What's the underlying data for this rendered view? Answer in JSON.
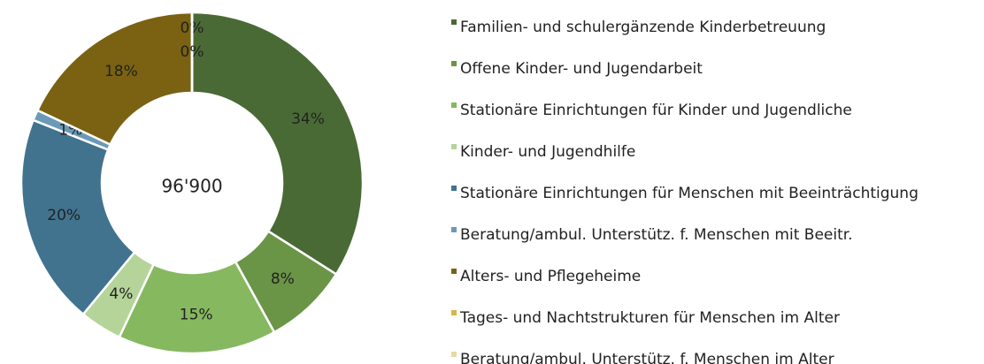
{
  "chart_data": {
    "type": "donut",
    "center_label": "96'900",
    "categories": [
      "Familien- und schulergänzende Kinderbetreuung",
      "Offene Kinder- und Jugendarbeit",
      "Stationäre Einrichtungen für Kinder und Jugendliche",
      "Kinder- und Jugendhilfe",
      "Stationäre Einrichtungen für Menschen mit Beeinträchtigung",
      "Beratung/ambul. Unterstütz. f. Menschen mit Beeitr.",
      "Alters- und Pflegeheime",
      "Tages- und Nachtstrukturen für Menschen im Alter",
      "Beratung/ambul. Unterstütz. f. Menschen im Alter"
    ],
    "values": [
      34,
      8,
      15,
      4,
      20,
      1,
      18,
      0,
      0
    ],
    "value_labels": [
      "34%",
      "8%",
      "15%",
      "4%",
      "20%",
      "1%",
      "18%",
      "0%",
      "0%"
    ],
    "colors": [
      "#4a6a35",
      "#6a9446",
      "#86b860",
      "#b5d49a",
      "#41738f",
      "#6b9ab8",
      "#7a6212",
      "#d8b54a",
      "#e8d9a0"
    ],
    "legend": "right"
  }
}
